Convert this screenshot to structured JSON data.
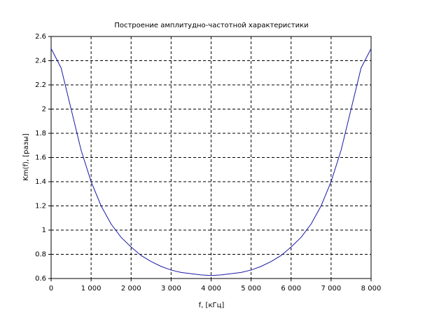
{
  "chart_data": {
    "type": "line",
    "title": "Построение амплитудно-частотной характеристики",
    "x_label": "f, [кГц]",
    "y_label": "Km(f), [разы]",
    "x": [
      0,
      250,
      500,
      750,
      1000,
      1250,
      1500,
      1750,
      2000,
      2250,
      2500,
      2750,
      3000,
      3250,
      3500,
      3750,
      4000,
      4250,
      4500,
      4750,
      5000,
      5250,
      5500,
      5750,
      6000,
      6250,
      6500,
      6750,
      7000,
      7250,
      7500,
      7750,
      8000
    ],
    "series": [
      {
        "color": "#1a1aa6",
        "values": [
          2.5,
          2.34,
          2.0,
          1.66,
          1.4,
          1.2,
          1.05,
          0.94,
          0.86,
          0.79,
          0.74,
          0.7,
          0.67,
          0.65,
          0.64,
          0.63,
          0.625,
          0.63,
          0.64,
          0.65,
          0.67,
          0.7,
          0.74,
          0.79,
          0.86,
          0.94,
          1.05,
          1.2,
          1.4,
          1.66,
          2.0,
          2.34,
          2.5
        ]
      }
    ],
    "xlim": [
      0,
      8000
    ],
    "ylim": [
      0.6,
      2.6
    ],
    "xticks": [
      0,
      {
        "value": 1000,
        "label": "1 000"
      },
      {
        "value": 2000,
        "label": "2 000"
      },
      {
        "value": 3000,
        "label": "3 000"
      },
      {
        "value": 4000,
        "label": "4 000"
      },
      {
        "value": 5000,
        "label": "5 000"
      },
      {
        "value": 6000,
        "label": "6 000"
      },
      {
        "value": 7000,
        "label": "7 000"
      },
      {
        "value": 8000,
        "label": "8 000"
      }
    ],
    "yticks": [
      0.6,
      0.8,
      1,
      1.2,
      1.4,
      1.6,
      1.8,
      2,
      2.2,
      2.4,
      2.6
    ],
    "grid": true
  }
}
